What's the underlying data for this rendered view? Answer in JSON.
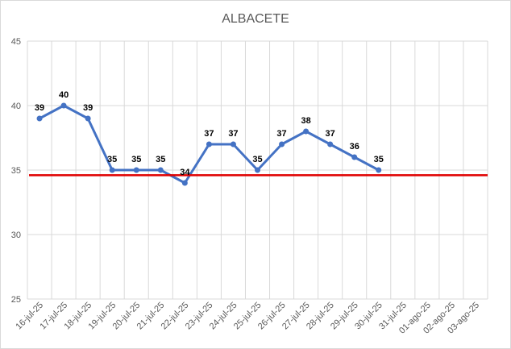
{
  "chart_data": {
    "type": "line",
    "title": "ALBACETE",
    "xlabel": "",
    "ylabel": "",
    "ylim": [
      25,
      45
    ],
    "yticks": [
      25,
      30,
      35,
      40,
      45
    ],
    "grid": true,
    "categories": [
      "16-jul-25",
      "17-jul-25",
      "18-jul-25",
      "19-jul-25",
      "20-jul-25",
      "21-jul-25",
      "22-jul-25",
      "23-jul-25",
      "24-jul-25",
      "25-jul-25",
      "26-jul-25",
      "27-jul-25",
      "28-jul-25",
      "29-jul-25",
      "30-jul-25",
      "31-jul-25",
      "01-ago-25",
      "02-ago-25",
      "03-ago-25"
    ],
    "series": [
      {
        "values": [
          39,
          40,
          39,
          35,
          35,
          35,
          34,
          37,
          37,
          35,
          37,
          38,
          37,
          36,
          35,
          null,
          null,
          null,
          null
        ],
        "color": "#4472c4",
        "data_labels": true
      },
      {
        "values": [
          34.6,
          34.6,
          34.6,
          34.6,
          34.6,
          34.6,
          34.6,
          34.6,
          34.6,
          34.6,
          34.6,
          34.6,
          34.6,
          34.6,
          34.6,
          34.6,
          34.6,
          34.6,
          34.6
        ],
        "color": "#e00000",
        "data_labels": false
      }
    ]
  }
}
